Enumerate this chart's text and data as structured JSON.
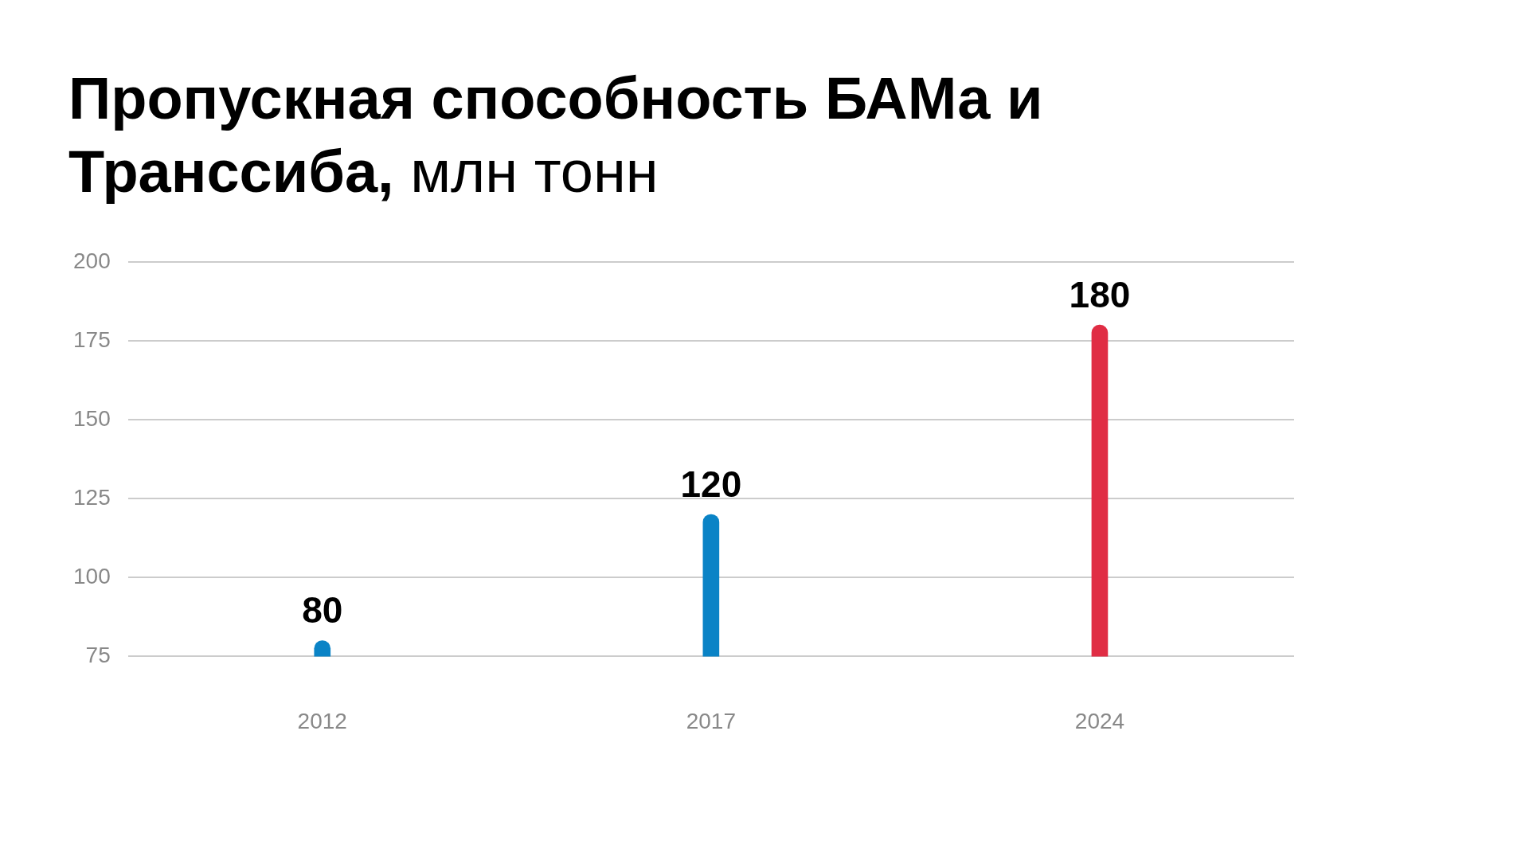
{
  "chart_data": {
    "type": "bar",
    "title": "Пропускная способность БАМа и Транссиба,",
    "subtitle": "млн тонн",
    "categories": [
      "2012",
      "2017",
      "2024"
    ],
    "values": [
      80,
      120,
      180
    ],
    "colors": [
      "#0a83c6",
      "#0a83c6",
      "#e02d44"
    ],
    "ylim": [
      75,
      200
    ],
    "yticks": [
      75,
      100,
      125,
      150,
      175,
      200
    ],
    "grid": "y",
    "legend": false,
    "data_labels": true
  }
}
